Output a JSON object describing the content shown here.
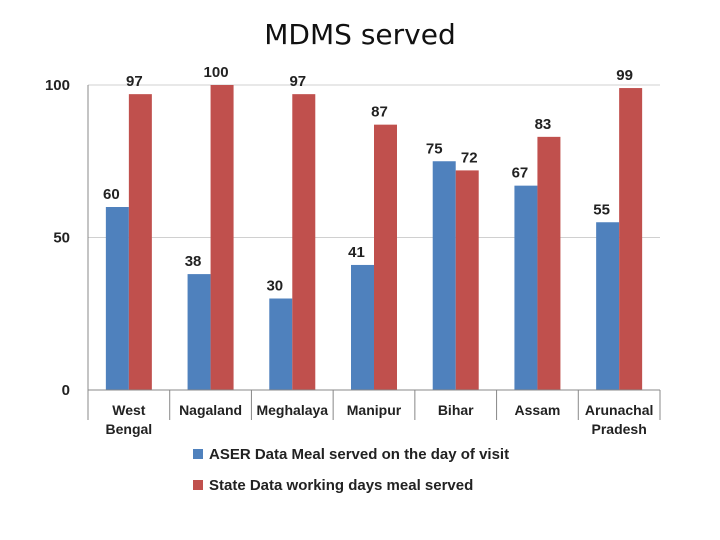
{
  "chart_data": {
    "type": "bar",
    "title": "MDMS served",
    "categories": [
      [
        "West",
        "Bengal"
      ],
      [
        "Nagaland"
      ],
      [
        "Meghalaya"
      ],
      [
        "Manipur"
      ],
      [
        "Bihar"
      ],
      [
        "Assam"
      ],
      [
        "Arunachal",
        "Pradesh"
      ]
    ],
    "series": [
      {
        "name": "ASER Data Meal served on the day of visit",
        "color": "#4F81BD",
        "values": [
          60,
          38,
          30,
          41,
          75,
          67,
          55
        ]
      },
      {
        "name": "State Data working days meal served",
        "color": "#C0504D",
        "values": [
          97,
          100,
          97,
          87,
          72,
          83,
          99
        ]
      }
    ],
    "yticks": [
      "0",
      "50",
      "100"
    ],
    "ylim": [
      0,
      100
    ],
    "grid": true,
    "legend_position": "bottom"
  }
}
